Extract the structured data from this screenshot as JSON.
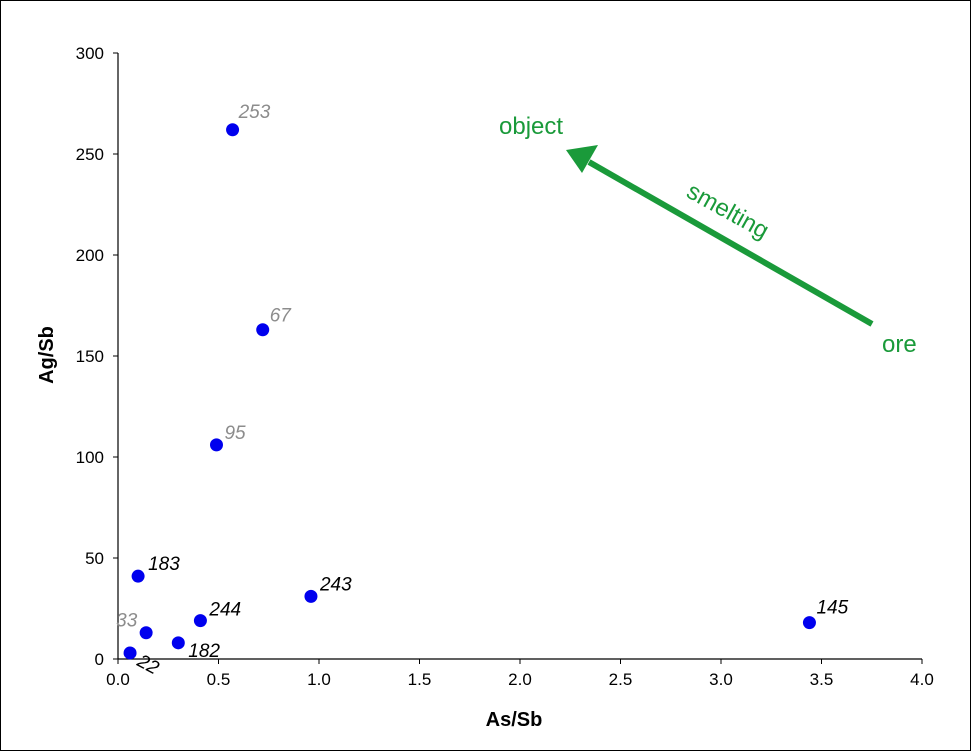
{
  "chart_data": {
    "type": "scatter",
    "title": "",
    "xlabel": "As/Sb",
    "ylabel": "Ag/Sb",
    "xlim": [
      0,
      4
    ],
    "ylim": [
      0,
      300
    ],
    "xticks": [
      "0.0",
      "0.5",
      "1.0",
      "1.5",
      "2.0",
      "2.5",
      "3.0",
      "3.5",
      "4.0"
    ],
    "yticks": [
      "0",
      "50",
      "100",
      "150",
      "200",
      "250",
      "300"
    ],
    "grid": false,
    "legend": "none",
    "marker_color": "#0000ee",
    "points": [
      {
        "label": "253",
        "x": 0.57,
        "y": 262,
        "label_color": "#8c8c8c"
      },
      {
        "label": "67",
        "x": 0.72,
        "y": 163,
        "label_color": "#8c8c8c"
      },
      {
        "label": "95",
        "x": 0.49,
        "y": 106,
        "label_color": "#8c8c8c"
      },
      {
        "label": "183",
        "x": 0.1,
        "y": 41,
        "label_color": "#000000"
      },
      {
        "label": "243",
        "x": 0.96,
        "y": 31,
        "label_color": "#000000"
      },
      {
        "label": "244",
        "x": 0.41,
        "y": 19,
        "label_color": "#000000"
      },
      {
        "label": "33",
        "x": 0.14,
        "y": 13,
        "label_color": "#8c8c8c"
      },
      {
        "label": "182",
        "x": 0.3,
        "y": 8,
        "label_color": "#000000"
      },
      {
        "label": "22",
        "x": 0.06,
        "y": 3,
        "label_color": "#000000"
      },
      {
        "label": "145",
        "x": 3.44,
        "y": 18,
        "label_color": "#000000"
      }
    ],
    "annotations": {
      "color": "#1a9a3a",
      "object": "object",
      "smelting": "smelting",
      "ore": "ore"
    }
  }
}
